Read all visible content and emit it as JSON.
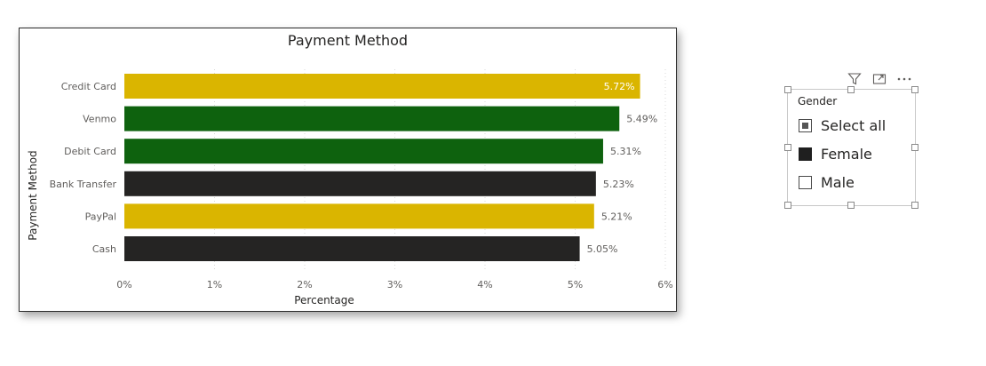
{
  "visual": {
    "title": "Payment Method"
  },
  "chart_data": {
    "type": "bar",
    "orientation": "horizontal",
    "title": "Payment Method",
    "xlabel": "Percentage",
    "ylabel": "Payment Method",
    "xlim": [
      0,
      6
    ],
    "x_ticks": [
      "0%",
      "1%",
      "2%",
      "3%",
      "4%",
      "5%",
      "6%"
    ],
    "grid": "vertical dotted",
    "categories": [
      "Credit Card",
      "Venmo",
      "Debit Card",
      "Bank Transfer",
      "PayPal",
      "Cash"
    ],
    "values": [
      5.72,
      5.49,
      5.31,
      5.23,
      5.21,
      5.05
    ],
    "data_labels": [
      "5.72%",
      "5.49%",
      "5.31%",
      "5.23%",
      "5.21%",
      "5.05%"
    ],
    "bar_colors": [
      "#DAB500",
      "#0E620E",
      "#0E620E",
      "#252423",
      "#DAB500",
      "#252423"
    ],
    "label_colors": [
      "#FFFFFF",
      "#605E5C",
      "#605E5C",
      "#605E5C",
      "#605E5C",
      "#605E5C"
    ]
  },
  "slicer": {
    "header": "Gender",
    "items": [
      {
        "label": "Select all",
        "state": "partial"
      },
      {
        "label": "Female",
        "state": "checked"
      },
      {
        "label": "Male",
        "state": "unchecked"
      }
    ],
    "header_icons": [
      "filter-icon",
      "focus-mode-icon",
      "more-options-icon"
    ]
  },
  "colors": {
    "gold": "#DAB500",
    "green": "#0E620E",
    "dark": "#252423",
    "gridline": "#D9D9D9"
  }
}
